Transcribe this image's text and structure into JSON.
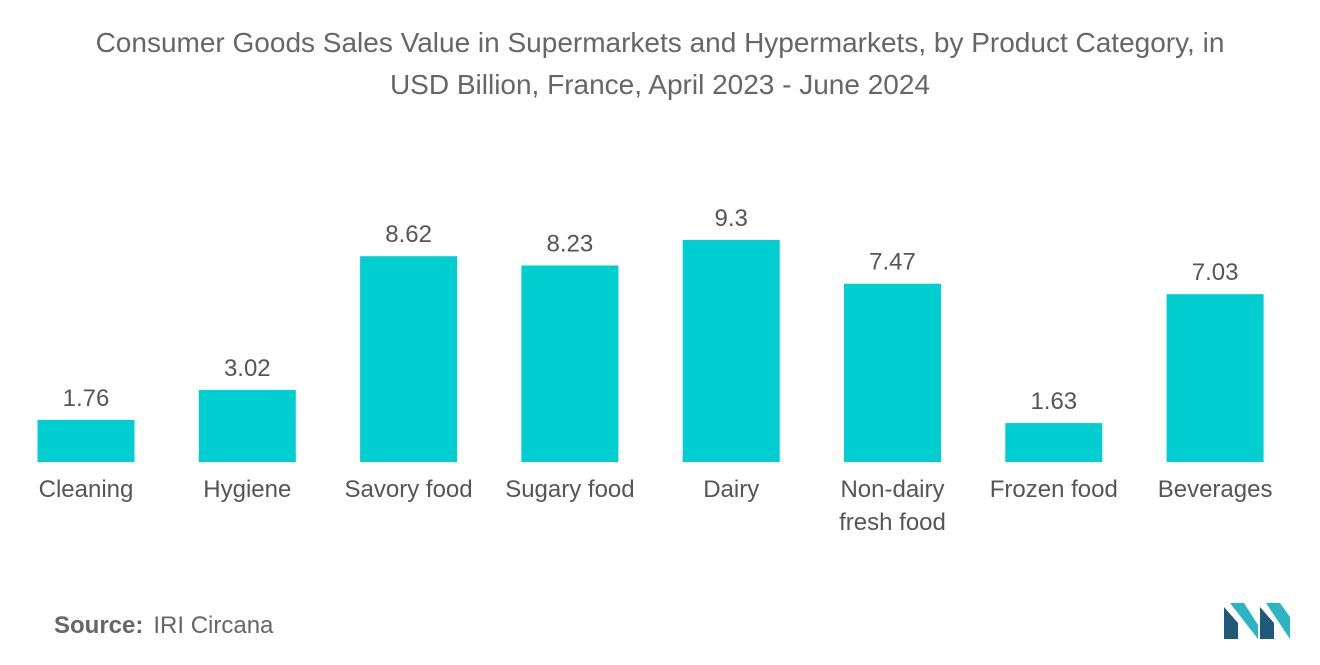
{
  "chart_data": {
    "type": "bar",
    "title": "Consumer Goods Sales Value in Supermarkets and Hypermarkets, by Product Category, in USD Billion, France, April 2023 - June 2024",
    "title_lines": [
      "Consumer Goods Sales Value in Supermarkets and Hypermarkets, by Product Category, in",
      "USD Billion, France, April 2023 - June 2024"
    ],
    "categories": [
      "Cleaning",
      "Hygiene",
      "Savory food",
      "Sugary food",
      "Dairy",
      "Non-dairy fresh food",
      "Frozen food",
      "Beverages"
    ],
    "category_lines": [
      [
        "Cleaning"
      ],
      [
        "Hygiene"
      ],
      [
        "Savory food"
      ],
      [
        "Sugary food"
      ],
      [
        "Dairy"
      ],
      [
        "Non-dairy",
        "fresh food"
      ],
      [
        "Frozen food"
      ],
      [
        "Beverages"
      ]
    ],
    "values": [
      1.76,
      3.02,
      8.62,
      8.23,
      9.3,
      7.47,
      1.63,
      7.03
    ],
    "value_labels": [
      "1.76",
      "3.02",
      "8.62",
      "8.23",
      "9.3",
      "7.47",
      "1.63",
      "7.03"
    ],
    "xlabel": "",
    "ylabel": "",
    "ylim": [
      0,
      9.3
    ],
    "grid": false,
    "legend": "none",
    "bar_color": "#00CED1"
  },
  "source": {
    "label": "Source:",
    "value": "IRI Circana"
  },
  "logo": {
    "icon": "mordor-intelligence-logo-icon",
    "colors": [
      "#1F5A7A",
      "#2BB5C4"
    ]
  }
}
